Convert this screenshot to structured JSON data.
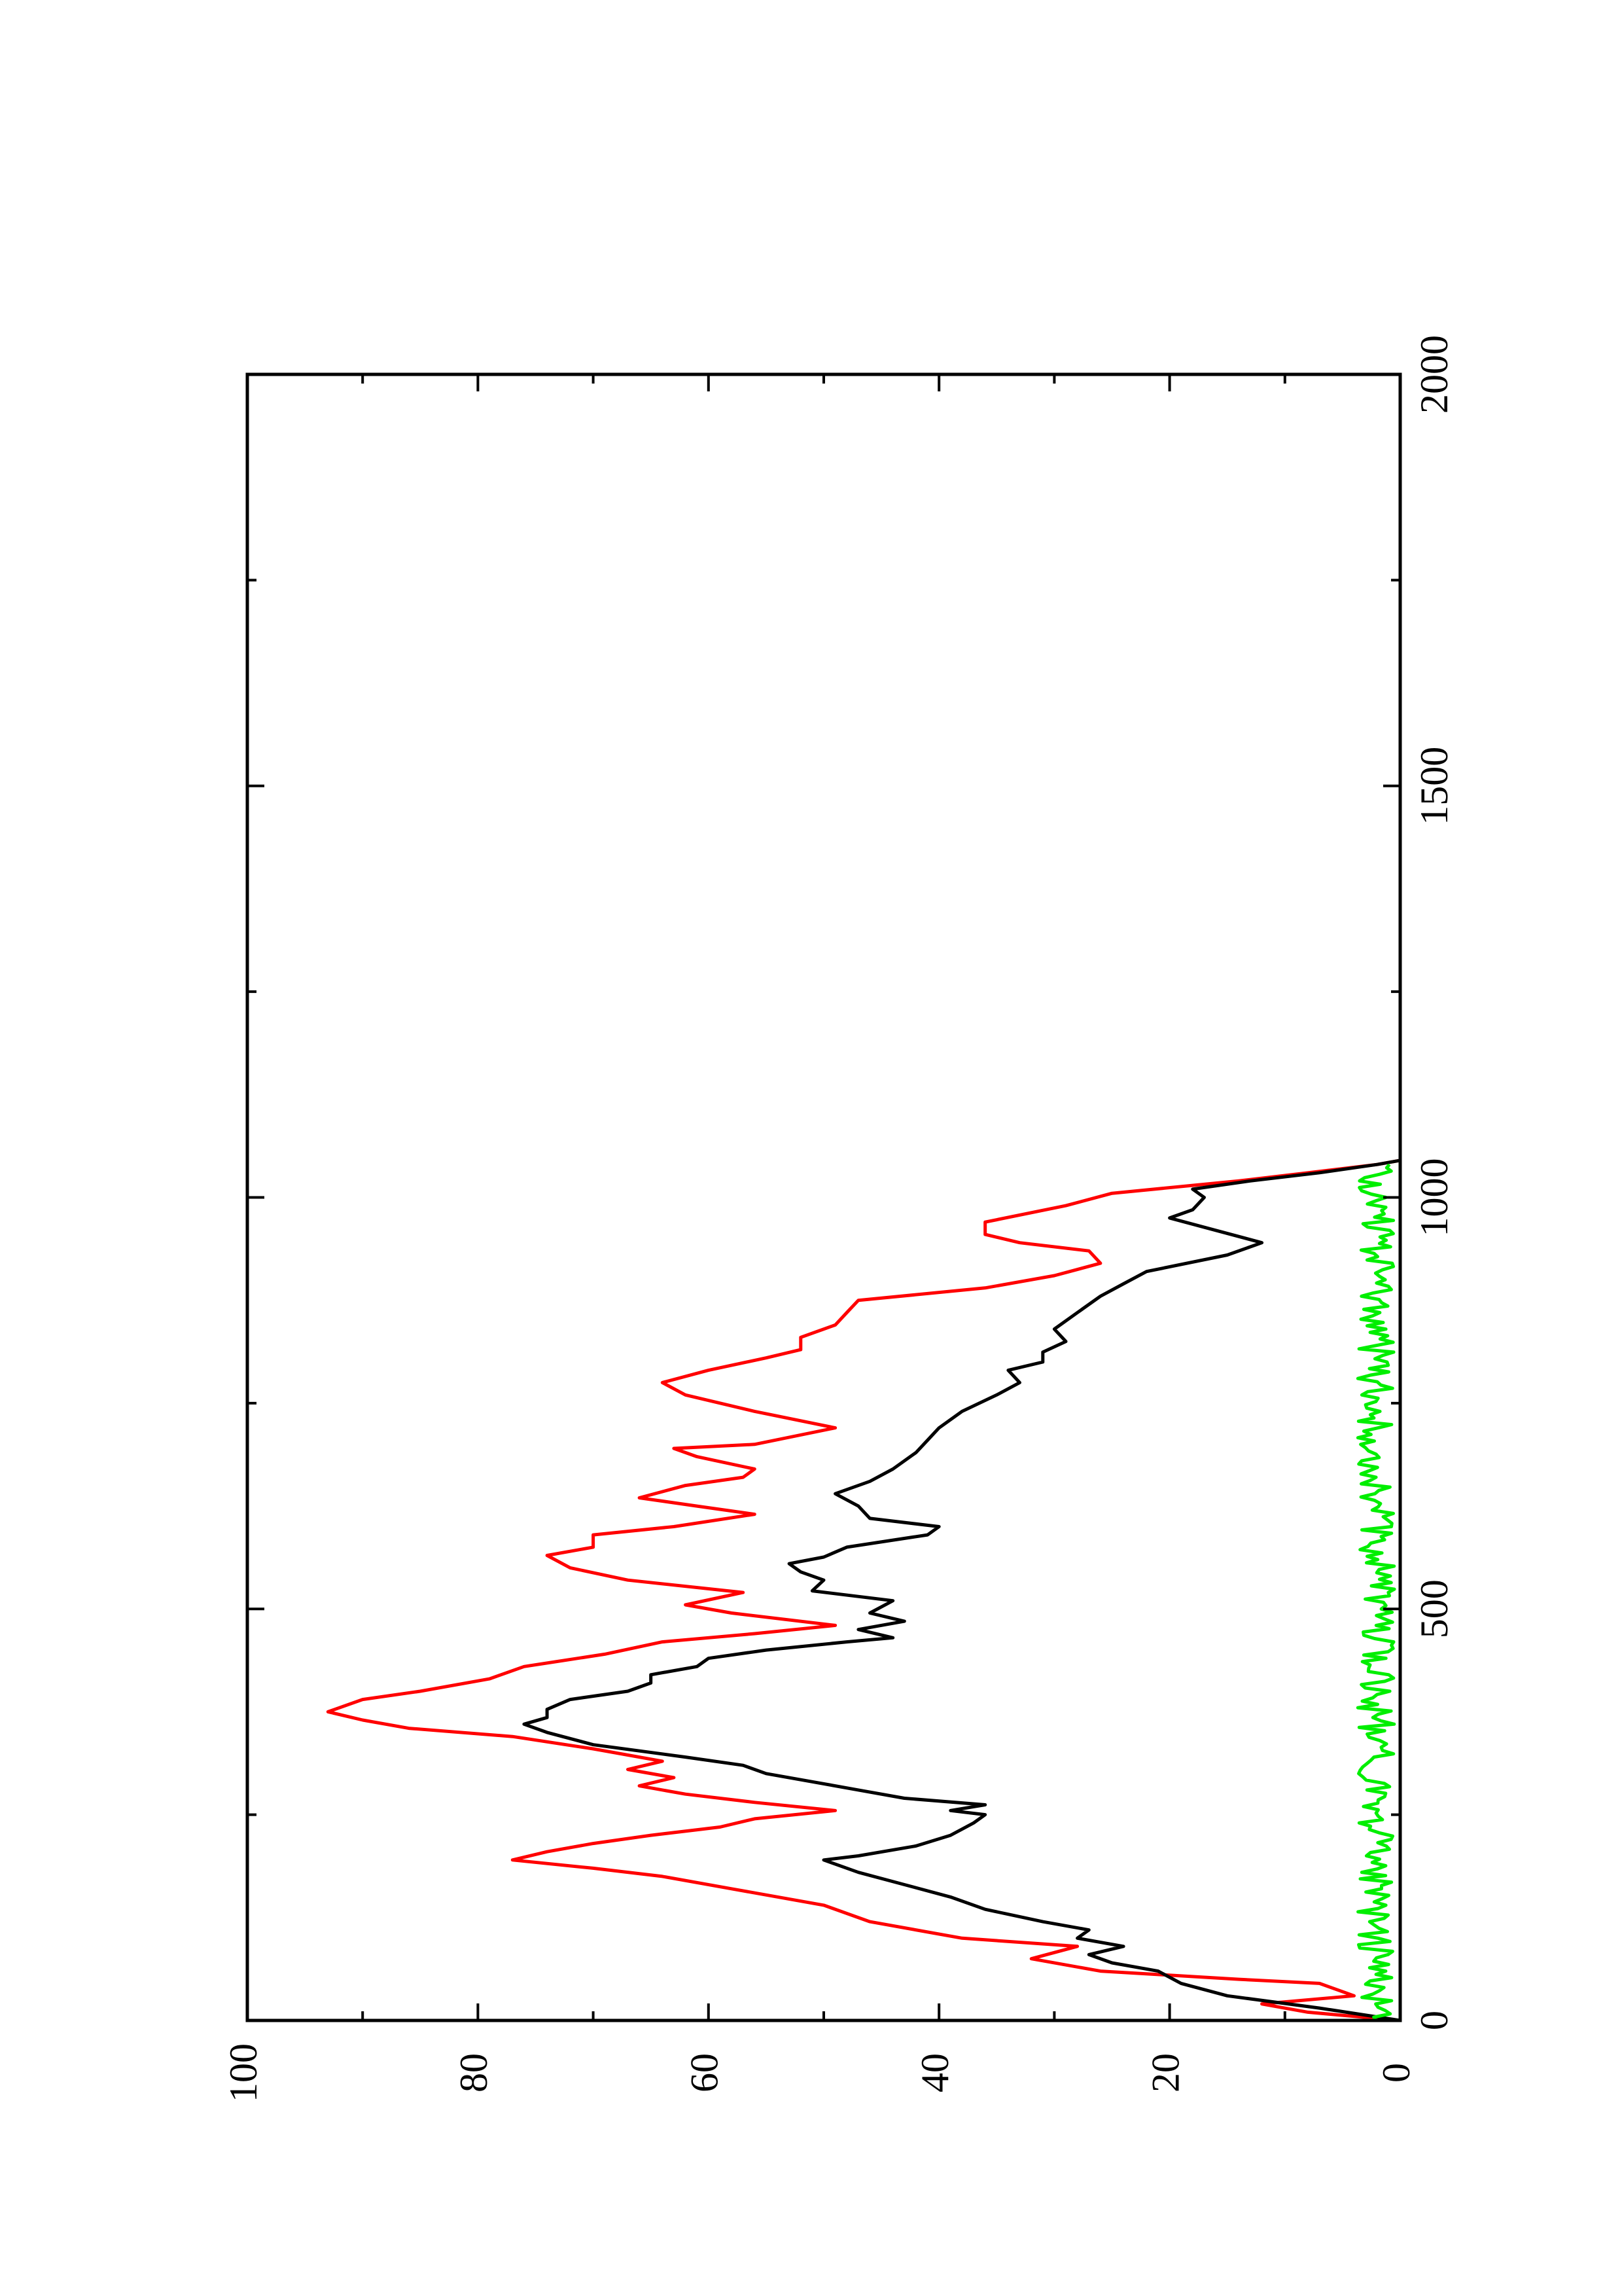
{
  "chart_data": {
    "type": "line",
    "orientation": "rotated-90-ccw",
    "title": "",
    "xlabel": "",
    "ylabel": "",
    "xlim": [
      0,
      2000
    ],
    "ylim": [
      0,
      100
    ],
    "x_major_ticks": [
      0,
      500,
      1000,
      1500,
      2000
    ],
    "x_minor_ticks": [
      250,
      750,
      1250,
      1750
    ],
    "y_major_ticks": [
      0,
      20,
      40,
      60,
      80,
      100
    ],
    "y_minor_ticks": [
      10,
      30,
      50,
      70,
      90
    ],
    "x_tick_labels": [
      "0",
      "500",
      "1000",
      "1500",
      "2000"
    ],
    "y_tick_labels": [
      "0",
      "20",
      "40",
      "60",
      "80",
      "100"
    ],
    "grid": false,
    "legend": "none",
    "series": [
      {
        "color": "#ff0000",
        "points": [
          [
            0,
            0
          ],
          [
            10,
            8
          ],
          [
            20,
            12
          ],
          [
            30,
            4
          ],
          [
            45,
            7
          ],
          [
            50,
            14
          ],
          [
            60,
            26
          ],
          [
            75,
            32
          ],
          [
            90,
            28
          ],
          [
            100,
            38
          ],
          [
            120,
            46
          ],
          [
            140,
            50
          ],
          [
            160,
            58
          ],
          [
            175,
            64
          ],
          [
            185,
            70
          ],
          [
            195,
            77
          ],
          [
            205,
            74
          ],
          [
            215,
            70
          ],
          [
            225,
            65
          ],
          [
            235,
            59
          ],
          [
            245,
            56
          ],
          [
            255,
            49
          ],
          [
            265,
            56
          ],
          [
            275,
            62
          ],
          [
            285,
            66
          ],
          [
            295,
            63
          ],
          [
            305,
            67
          ],
          [
            315,
            64
          ],
          [
            330,
            70
          ],
          [
            345,
            77
          ],
          [
            355,
            86
          ],
          [
            365,
            90
          ],
          [
            375,
            93
          ],
          [
            390,
            90
          ],
          [
            400,
            85
          ],
          [
            415,
            79
          ],
          [
            430,
            76
          ],
          [
            445,
            69
          ],
          [
            460,
            64
          ],
          [
            470,
            56
          ],
          [
            480,
            49
          ],
          [
            495,
            58
          ],
          [
            505,
            62
          ],
          [
            520,
            57
          ],
          [
            535,
            67
          ],
          [
            550,
            72
          ],
          [
            565,
            74
          ],
          [
            575,
            70
          ],
          [
            590,
            70
          ],
          [
            600,
            63
          ],
          [
            615,
            56
          ],
          [
            625,
            61
          ],
          [
            635,
            66
          ],
          [
            650,
            62
          ],
          [
            660,
            57
          ],
          [
            670,
            56
          ],
          [
            685,
            61
          ],
          [
            695,
            63
          ],
          [
            700,
            56
          ],
          [
            720,
            49
          ],
          [
            740,
            56
          ],
          [
            760,
            62
          ],
          [
            775,
            64
          ],
          [
            790,
            60
          ],
          [
            805,
            55
          ],
          [
            815,
            52
          ],
          [
            830,
            52
          ],
          [
            845,
            49
          ],
          [
            860,
            48
          ],
          [
            875,
            47
          ],
          [
            890,
            36
          ],
          [
            905,
            30
          ],
          [
            920,
            26
          ],
          [
            935,
            27
          ],
          [
            945,
            33
          ],
          [
            955,
            36
          ],
          [
            970,
            36
          ],
          [
            990,
            29
          ],
          [
            1005,
            25
          ],
          [
            1020,
            14
          ],
          [
            1030,
            8
          ],
          [
            1040,
            2
          ],
          [
            1045,
            0
          ]
        ]
      },
      {
        "color": "#000000",
        "points": [
          [
            0,
            0
          ],
          [
            15,
            7
          ],
          [
            30,
            15
          ],
          [
            45,
            19
          ],
          [
            60,
            21
          ],
          [
            70,
            25
          ],
          [
            80,
            27
          ],
          [
            90,
            24
          ],
          [
            100,
            28
          ],
          [
            110,
            27
          ],
          [
            120,
            31
          ],
          [
            135,
            36
          ],
          [
            150,
            39
          ],
          [
            165,
            43
          ],
          [
            180,
            47
          ],
          [
            195,
            50
          ],
          [
            200,
            47
          ],
          [
            212,
            42
          ],
          [
            225,
            39
          ],
          [
            240,
            37
          ],
          [
            250,
            36
          ],
          [
            255,
            39
          ],
          [
            262,
            36
          ],
          [
            270,
            43
          ],
          [
            280,
            47
          ],
          [
            290,
            51
          ],
          [
            300,
            55
          ],
          [
            310,
            57
          ],
          [
            320,
            62
          ],
          [
            335,
            70
          ],
          [
            350,
            74
          ],
          [
            360,
            76
          ],
          [
            368,
            74
          ],
          [
            378,
            74
          ],
          [
            390,
            72
          ],
          [
            400,
            67
          ],
          [
            410,
            65
          ],
          [
            420,
            65
          ],
          [
            430,
            61
          ],
          [
            440,
            60
          ],
          [
            450,
            55
          ],
          [
            460,
            48
          ],
          [
            465,
            44
          ],
          [
            475,
            47
          ],
          [
            485,
            43
          ],
          [
            495,
            46
          ],
          [
            510,
            44
          ],
          [
            522,
            51
          ],
          [
            535,
            50
          ],
          [
            545,
            52
          ],
          [
            555,
            53
          ],
          [
            563,
            50
          ],
          [
            575,
            48
          ],
          [
            590,
            41
          ],
          [
            600,
            40
          ],
          [
            610,
            46
          ],
          [
            625,
            47
          ],
          [
            640,
            49
          ],
          [
            655,
            46
          ],
          [
            670,
            44
          ],
          [
            690,
            42
          ],
          [
            705,
            41
          ],
          [
            720,
            40
          ],
          [
            740,
            38
          ],
          [
            760,
            35
          ],
          [
            775,
            33
          ],
          [
            790,
            34
          ],
          [
            800,
            31
          ],
          [
            812,
            31
          ],
          [
            825,
            29
          ],
          [
            840,
            30
          ],
          [
            860,
            28
          ],
          [
            880,
            26
          ],
          [
            895,
            24
          ],
          [
            910,
            22
          ],
          [
            930,
            15
          ],
          [
            945,
            12
          ],
          [
            960,
            16
          ],
          [
            975,
            20
          ],
          [
            985,
            18
          ],
          [
            1000,
            17
          ],
          [
            1010,
            18
          ],
          [
            1020,
            13
          ],
          [
            1030,
            7
          ],
          [
            1040,
            2
          ],
          [
            1045,
            0
          ]
        ]
      },
      {
        "color": "#00ee00",
        "points": [
          [
            0,
            2
          ],
          [
            50,
            2
          ],
          [
            100,
            2
          ],
          [
            150,
            2
          ],
          [
            200,
            2
          ],
          [
            250,
            2
          ],
          [
            300,
            2
          ],
          [
            350,
            2
          ],
          [
            400,
            2
          ],
          [
            450,
            2
          ],
          [
            500,
            2
          ],
          [
            550,
            2
          ],
          [
            600,
            2
          ],
          [
            650,
            2
          ],
          [
            700,
            2
          ],
          [
            750,
            2
          ],
          [
            800,
            2
          ],
          [
            850,
            2
          ],
          [
            900,
            2
          ],
          [
            950,
            2
          ],
          [
            1000,
            2
          ],
          [
            1040,
            2
          ]
        ]
      }
    ]
  }
}
